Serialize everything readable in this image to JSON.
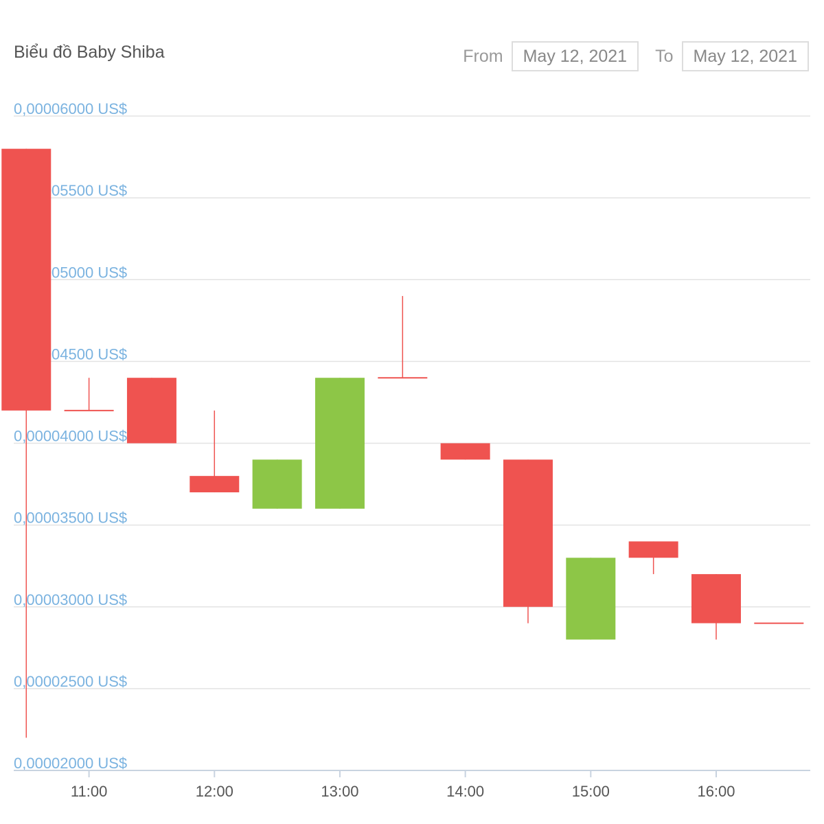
{
  "header": {
    "title": "Biểu đồ Baby Shiba",
    "from_label": "From",
    "from_value": "May 12, 2021",
    "to_label": "To",
    "to_value": "May 12, 2021"
  },
  "colors": {
    "up": "#8dc647",
    "down": "#ef5350",
    "grid": "#e3e3e3",
    "axis_label": "#7bb3e0"
  },
  "chart_data": {
    "type": "candlestick",
    "ylim": [
      2e-05,
      6e-05
    ],
    "y_ticks": [
      {
        "value": 6e-05,
        "label": "0,00006000 US$"
      },
      {
        "value": 5.5e-05,
        "label": "0,00005500 US$"
      },
      {
        "value": 5e-05,
        "label": "0,00005000 US$"
      },
      {
        "value": 4.5e-05,
        "label": "0,00004500 US$"
      },
      {
        "value": 4e-05,
        "label": "0,00004000 US$"
      },
      {
        "value": 3.5e-05,
        "label": "0,00003500 US$"
      },
      {
        "value": 3e-05,
        "label": "0,00003000 US$"
      },
      {
        "value": 2.5e-05,
        "label": "0,00002500 US$"
      },
      {
        "value": 2e-05,
        "label": "0,00002000 US$"
      }
    ],
    "x_ticks": [
      "11:00",
      "12:00",
      "13:00",
      "14:00",
      "15:00",
      "16:00"
    ],
    "xlim_hours": [
      10.4,
      16.75
    ],
    "candles": [
      {
        "time": "10:30",
        "open": 5.8e-05,
        "high": 5.8e-05,
        "low": 2.2e-05,
        "close": 4.2e-05
      },
      {
        "time": "11:00",
        "open": 4.2e-05,
        "high": 4.4e-05,
        "low": 4.2e-05,
        "close": 4.2e-05
      },
      {
        "time": "11:30",
        "open": 4.4e-05,
        "high": 4.4e-05,
        "low": 4e-05,
        "close": 4e-05
      },
      {
        "time": "12:00",
        "open": 3.8e-05,
        "high": 4.2e-05,
        "low": 3.7e-05,
        "close": 3.7e-05
      },
      {
        "time": "12:30",
        "open": 3.6e-05,
        "high": 3.9e-05,
        "low": 3.6e-05,
        "close": 3.9e-05
      },
      {
        "time": "13:00",
        "open": 3.6e-05,
        "high": 4.4e-05,
        "low": 3.6e-05,
        "close": 4.4e-05
      },
      {
        "time": "13:30",
        "open": 4.4e-05,
        "high": 4.9e-05,
        "low": 4.4e-05,
        "close": 4.4e-05
      },
      {
        "time": "14:00",
        "open": 4e-05,
        "high": 4e-05,
        "low": 3.9e-05,
        "close": 3.9e-05
      },
      {
        "time": "14:30",
        "open": 3.9e-05,
        "high": 3.9e-05,
        "low": 2.9e-05,
        "close": 3e-05
      },
      {
        "time": "15:00",
        "open": 2.8e-05,
        "high": 3.3e-05,
        "low": 2.8e-05,
        "close": 3.3e-05
      },
      {
        "time": "15:30",
        "open": 3.4e-05,
        "high": 3.4e-05,
        "low": 3.2e-05,
        "close": 3.3e-05
      },
      {
        "time": "16:00",
        "open": 3.2e-05,
        "high": 3.2e-05,
        "low": 2.8e-05,
        "close": 2.9e-05
      },
      {
        "time": "16:30",
        "open": 2.9e-05,
        "high": 2.9e-05,
        "low": 2.9e-05,
        "close": 2.9e-05
      }
    ]
  }
}
